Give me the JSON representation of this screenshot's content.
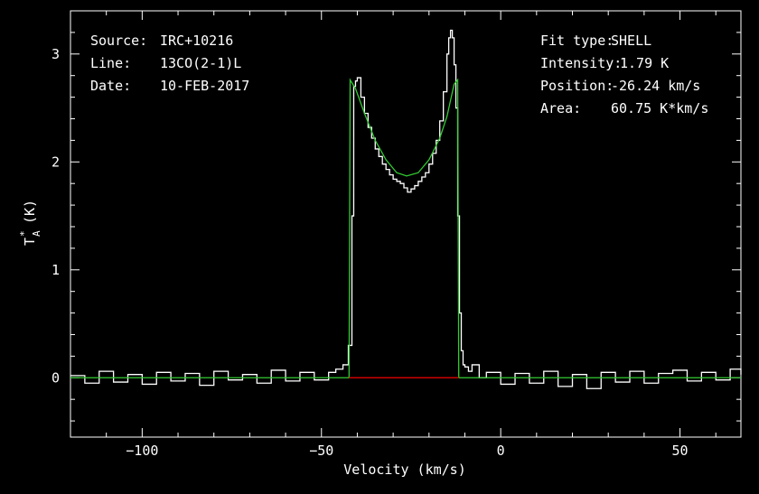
{
  "header_left": {
    "source_label": "Source:",
    "source_value": "IRC+10216",
    "line_label": "Line:",
    "line_value": "13CO(2-1)L",
    "date_label": "Date:",
    "date_value": "10-FEB-2017"
  },
  "header_right": {
    "fit_type_label": "Fit type:",
    "fit_type_value": "SHELL",
    "intensity_label": "Intensity:",
    "intensity_value": "1.79 K",
    "position_label": "Position:",
    "position_value": "-26.24 km/s",
    "area_label": "Area:",
    "area_value": "60.75 K*km/s"
  },
  "colors": {
    "background": "#000000",
    "spectrum": "#ffffff",
    "fit": "#33cc33",
    "baseline": "#cc0000",
    "axes": "#ffffff"
  },
  "chart_data": {
    "type": "line",
    "xlabel": "Velocity (km/s)",
    "ylabel_main": "T",
    "ylabel_sup": "*",
    "ylabel_sub": "A",
    "ylabel_unit": "(K)",
    "xlim": [
      -120,
      67
    ],
    "ylim": [
      -0.55,
      3.4
    ],
    "xticks": [
      -100,
      -50,
      0,
      50
    ],
    "xtick_labels": [
      "−100",
      "−50",
      "0",
      "50"
    ],
    "yticks": [
      0,
      1,
      2,
      3
    ],
    "ytick_labels": [
      "0",
      "1",
      "2",
      "3"
    ],
    "grid": false,
    "series": [
      {
        "name": "",
        "kind": "spectrum",
        "x": [
          -120,
          -116,
          -112,
          -108,
          -104,
          -100,
          -96,
          -92,
          -88,
          -84,
          -80,
          -76,
          -72,
          -68,
          -64,
          -60,
          -56,
          -52,
          -48,
          -46,
          -44,
          -42.5,
          -41.5,
          -41,
          -40.5,
          -40,
          -39,
          -38,
          -37,
          -36,
          -35,
          -34,
          -33,
          -32,
          -31,
          -30,
          -29,
          -28,
          -27,
          -26,
          -25,
          -24,
          -23,
          -22,
          -21,
          -20,
          -19,
          -18,
          -17,
          -16,
          -15,
          -14.5,
          -14,
          -13.5,
          -13,
          -12.5,
          -12,
          -11.5,
          -11,
          -10.5,
          -10,
          -9,
          -8,
          -6,
          -4,
          0,
          4,
          8,
          12,
          16,
          20,
          24,
          28,
          32,
          36,
          40,
          44,
          48,
          52,
          56,
          60,
          64,
          67
        ],
        "y": [
          0.02,
          -0.05,
          0.06,
          -0.04,
          0.03,
          -0.06,
          0.05,
          -0.03,
          0.04,
          -0.07,
          0.06,
          -0.02,
          0.03,
          -0.05,
          0.07,
          -0.03,
          0.05,
          -0.02,
          0.05,
          0.08,
          0.12,
          0.3,
          1.5,
          2.7,
          2.75,
          2.78,
          2.6,
          2.45,
          2.32,
          2.22,
          2.12,
          2.05,
          1.98,
          1.93,
          1.88,
          1.84,
          1.82,
          1.8,
          1.76,
          1.72,
          1.75,
          1.78,
          1.82,
          1.86,
          1.9,
          1.98,
          2.08,
          2.2,
          2.38,
          2.65,
          3.0,
          3.15,
          3.22,
          3.15,
          2.9,
          2.5,
          1.5,
          0.6,
          0.25,
          0.12,
          0.1,
          0.06,
          0.12,
          0.0,
          0.05,
          -0.06,
          0.04,
          -0.05,
          0.06,
          -0.08,
          0.03,
          -0.1,
          0.05,
          -0.04,
          0.06,
          -0.05,
          0.04,
          0.07,
          -0.03,
          0.05,
          -0.02,
          0.08,
          0.03
        ]
      },
      {
        "name": "",
        "kind": "fit",
        "x": [
          -120,
          -42.3,
          -42.0,
          -40.5,
          -38,
          -35,
          -32,
          -29,
          -26.24,
          -23,
          -20,
          -17,
          -15,
          -13,
          -12.0,
          -11.7,
          -10,
          67
        ],
        "y": [
          0,
          0,
          2.76,
          2.68,
          2.45,
          2.2,
          2.02,
          1.9,
          1.87,
          1.9,
          2.02,
          2.22,
          2.42,
          2.72,
          2.76,
          0,
          0,
          0
        ]
      },
      {
        "name": "",
        "kind": "baseline",
        "x": [
          -42.3,
          -11.7
        ],
        "y": [
          0,
          0
        ]
      }
    ]
  }
}
